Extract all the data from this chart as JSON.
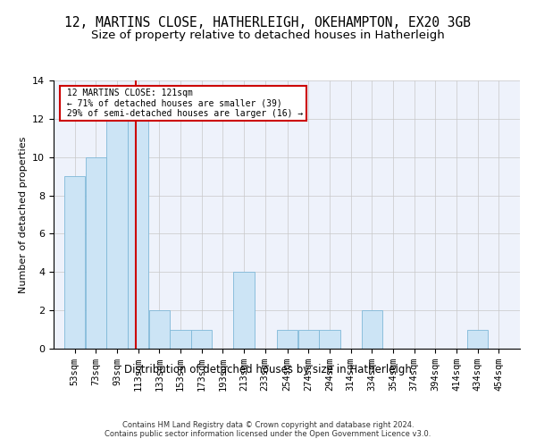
{
  "title1": "12, MARTINS CLOSE, HATHERLEIGH, OKEHAMPTON, EX20 3GB",
  "title2": "Size of property relative to detached houses in Hatherleigh",
  "xlabel": "Distribution of detached houses by size in Hatherleigh",
  "ylabel": "Number of detached properties",
  "annotation_title": "12 MARTINS CLOSE: 121sqm",
  "annotation_line1": "← 71% of detached houses are smaller (39)",
  "annotation_line2": "29% of semi-detached houses are larger (16) →",
  "footer1": "Contains HM Land Registry data © Crown copyright and database right 2024.",
  "footer2": "Contains public sector information licensed under the Open Government Licence v3.0.",
  "bar_edges": [
    53,
    73,
    93,
    113,
    133,
    153,
    173,
    193,
    213,
    233,
    254,
    274,
    294,
    314,
    334,
    354,
    374,
    394,
    414,
    434,
    454
  ],
  "bar_heights": [
    9,
    10,
    12,
    12,
    2,
    1,
    1,
    0,
    4,
    0,
    1,
    1,
    1,
    0,
    2,
    0,
    0,
    0,
    0,
    1,
    0
  ],
  "bar_color": "#cce4f5",
  "bar_edge_color": "#7fb8d8",
  "ref_line_x": 121,
  "ref_line_color": "#cc0000",
  "ylim": [
    0,
    14
  ],
  "yticks": [
    0,
    2,
    4,
    6,
    8,
    10,
    12,
    14
  ],
  "bg_color": "#eef2fb",
  "grid_color": "#c8c8c8",
  "title1_fontsize": 10.5,
  "title2_fontsize": 9.5,
  "xlabel_fontsize": 8.5,
  "ylabel_fontsize": 8,
  "annotation_box_color": "#cc0000",
  "tick_fontsize": 7.5
}
